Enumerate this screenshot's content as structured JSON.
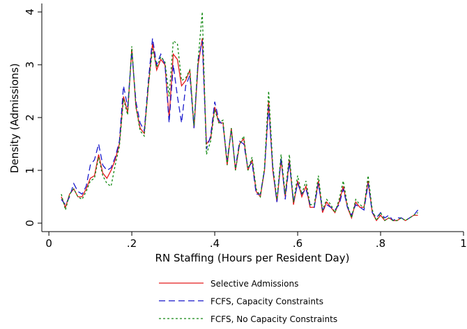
{
  "chart_data": {
    "type": "line",
    "x_label": "RN Staffing (Hours per Resident Day)",
    "y_label": "Density (Admissions)",
    "x": [
      0.03,
      0.04,
      0.05,
      0.06,
      0.07,
      0.08,
      0.09,
      0.1,
      0.11,
      0.12,
      0.13,
      0.14,
      0.15,
      0.16,
      0.17,
      0.18,
      0.19,
      0.2,
      0.21,
      0.22,
      0.23,
      0.24,
      0.25,
      0.26,
      0.27,
      0.28,
      0.29,
      0.3,
      0.31,
      0.32,
      0.33,
      0.34,
      0.35,
      0.36,
      0.37,
      0.38,
      0.39,
      0.4,
      0.41,
      0.42,
      0.43,
      0.44,
      0.45,
      0.46,
      0.47,
      0.48,
      0.49,
      0.5,
      0.51,
      0.52,
      0.53,
      0.54,
      0.55,
      0.56,
      0.57,
      0.58,
      0.59,
      0.6,
      0.61,
      0.62,
      0.63,
      0.64,
      0.65,
      0.66,
      0.67,
      0.68,
      0.69,
      0.7,
      0.71,
      0.72,
      0.73,
      0.74,
      0.75,
      0.76,
      0.77,
      0.78,
      0.79,
      0.8,
      0.81,
      0.82,
      0.83,
      0.84,
      0.85,
      0.86,
      0.87,
      0.88,
      0.89
    ],
    "series": [
      {
        "name": "Selective Admissions",
        "color": "#e41a1c",
        "dash": "none",
        "values": [
          0.5,
          0.3,
          0.55,
          0.65,
          0.5,
          0.5,
          0.65,
          0.85,
          0.9,
          1.3,
          0.95,
          0.85,
          1.0,
          1.2,
          1.5,
          2.4,
          2.1,
          3.3,
          2.2,
          1.8,
          1.7,
          2.6,
          3.4,
          2.9,
          3.1,
          3.0,
          2.0,
          3.2,
          3.1,
          2.6,
          2.7,
          2.9,
          1.8,
          3.0,
          3.5,
          1.5,
          1.6,
          2.2,
          1.9,
          1.9,
          1.1,
          1.8,
          1.0,
          1.5,
          1.6,
          1.0,
          1.2,
          0.6,
          0.5,
          1.0,
          2.3,
          1.0,
          0.4,
          1.2,
          0.5,
          1.2,
          0.35,
          0.8,
          0.5,
          0.7,
          0.3,
          0.3,
          0.8,
          0.2,
          0.4,
          0.3,
          0.2,
          0.4,
          0.7,
          0.3,
          0.1,
          0.4,
          0.3,
          0.3,
          0.8,
          0.2,
          0.05,
          0.15,
          0.05,
          0.1,
          0.05,
          0.05,
          0.1,
          0.05,
          0.1,
          0.15,
          0.15
        ]
      },
      {
        "name": "FCFS, Capacity Constraints",
        "color": "#1a1acc",
        "dash": "9,5",
        "values": [
          0.45,
          0.35,
          0.5,
          0.75,
          0.6,
          0.55,
          0.7,
          1.1,
          1.2,
          1.5,
          1.1,
          1.0,
          1.05,
          1.25,
          1.55,
          2.6,
          2.2,
          3.25,
          2.3,
          1.9,
          1.75,
          2.7,
          3.5,
          3.0,
          3.2,
          3.0,
          1.9,
          3.0,
          2.4,
          1.9,
          2.6,
          2.8,
          1.8,
          3.1,
          3.45,
          1.4,
          1.65,
          2.3,
          1.95,
          1.85,
          1.2,
          1.75,
          1.05,
          1.55,
          1.5,
          1.05,
          1.15,
          0.55,
          0.55,
          1.0,
          2.2,
          1.05,
          0.4,
          1.25,
          0.45,
          1.15,
          0.4,
          0.75,
          0.55,
          0.65,
          0.35,
          0.3,
          0.75,
          0.25,
          0.35,
          0.3,
          0.25,
          0.35,
          0.65,
          0.3,
          0.15,
          0.35,
          0.3,
          0.25,
          0.75,
          0.2,
          0.1,
          0.2,
          0.1,
          0.15,
          0.05,
          0.1,
          0.1,
          0.05,
          0.1,
          0.15,
          0.25
        ]
      },
      {
        "name": "FCFS, No Capacity Constraints",
        "color": "#118811",
        "dash": "3,3",
        "values": [
          0.55,
          0.25,
          0.55,
          0.65,
          0.5,
          0.45,
          0.6,
          0.8,
          0.85,
          1.25,
          0.9,
          0.75,
          0.7,
          1.1,
          1.45,
          2.35,
          2.05,
          3.35,
          2.2,
          1.75,
          1.65,
          2.6,
          3.3,
          2.95,
          3.15,
          3.05,
          2.4,
          3.45,
          3.4,
          2.7,
          2.75,
          2.9,
          1.85,
          3.1,
          4.0,
          1.3,
          1.55,
          2.15,
          1.9,
          1.95,
          1.1,
          1.8,
          1.0,
          1.5,
          1.65,
          1.0,
          1.25,
          0.65,
          0.5,
          1.05,
          2.5,
          1.1,
          0.45,
          1.3,
          0.55,
          1.3,
          0.4,
          0.9,
          0.55,
          0.8,
          0.35,
          0.35,
          0.9,
          0.25,
          0.45,
          0.35,
          0.2,
          0.45,
          0.8,
          0.35,
          0.1,
          0.45,
          0.35,
          0.3,
          0.9,
          0.25,
          0.05,
          0.2,
          0.05,
          0.1,
          0.05,
          0.05,
          0.1,
          0.05,
          0.1,
          0.15,
          0.2
        ]
      }
    ],
    "xlim": [
      -0.017,
      1.0
    ],
    "ylim": [
      -0.16,
      4.16
    ],
    "xticks": [
      0,
      {
        "value": 0.2,
        "label": ".2"
      },
      {
        "value": 0.4,
        "label": ".4"
      },
      {
        "value": 0.6,
        "label": ".6"
      },
      {
        "value": 0.8,
        "label": ".8"
      },
      1
    ],
    "yticks": [
      0,
      1,
      2,
      3,
      4
    ]
  }
}
